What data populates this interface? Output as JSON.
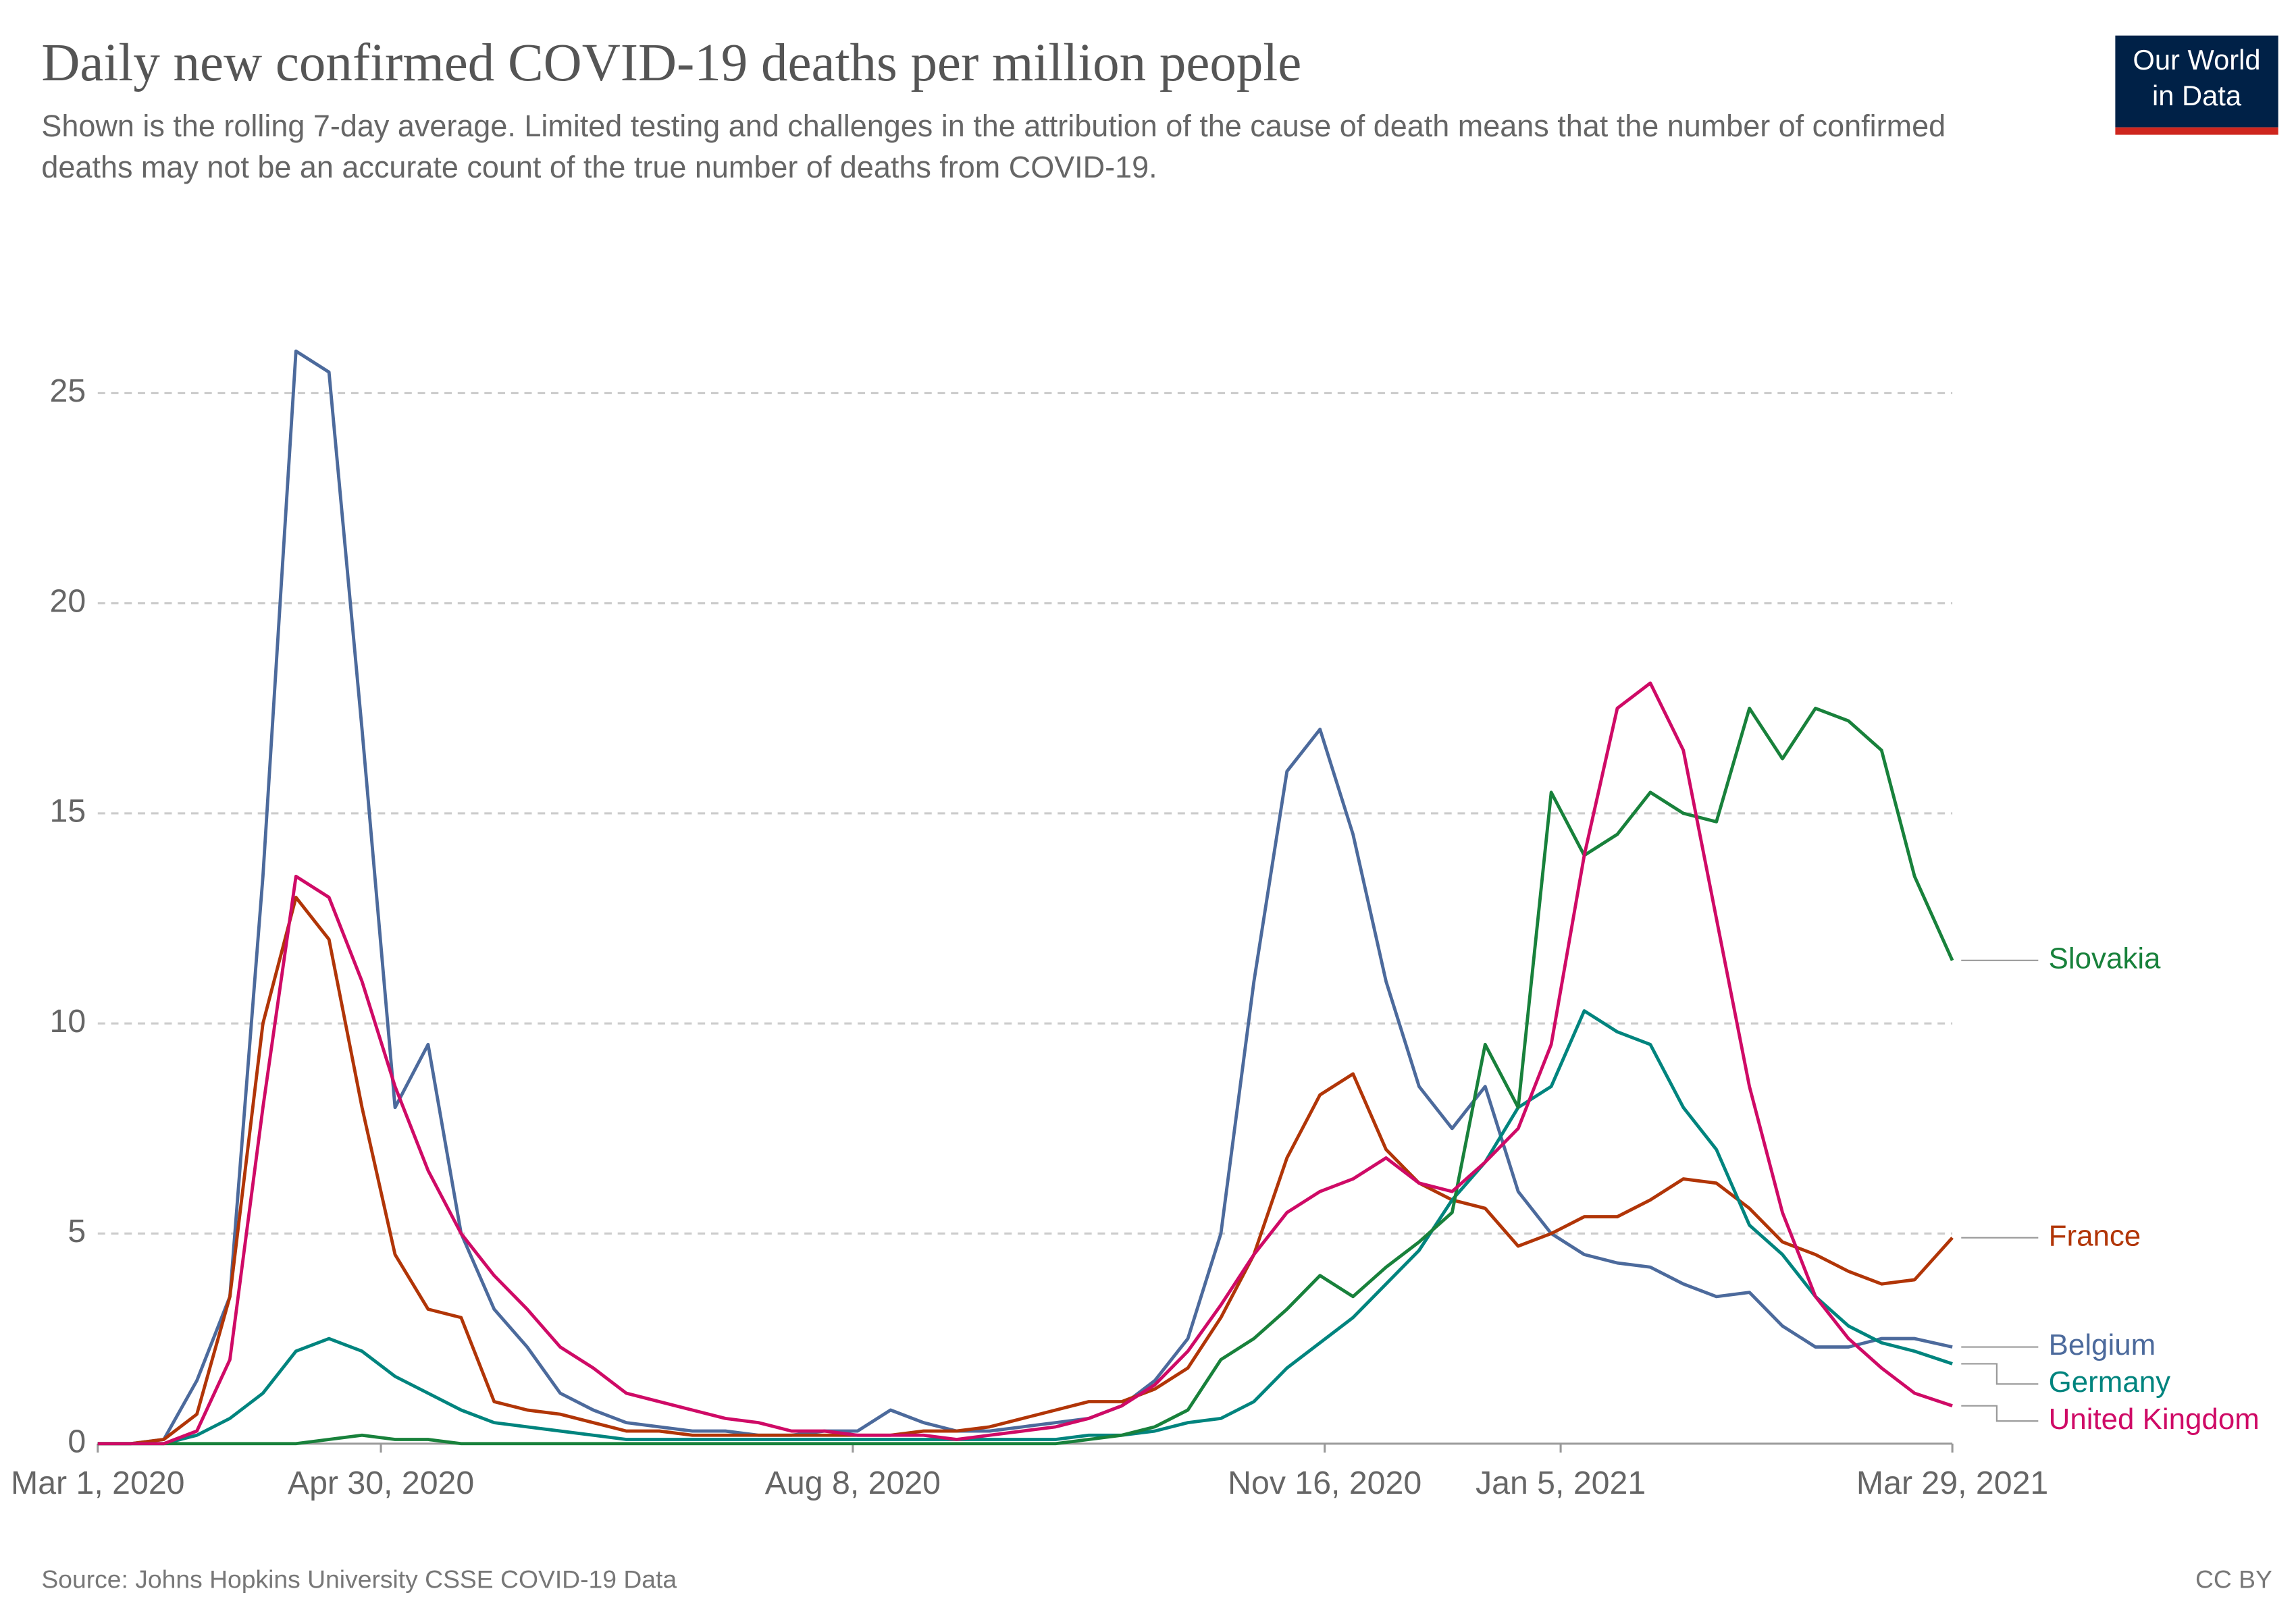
{
  "chart_data": {
    "type": "line",
    "title": "Daily new confirmed COVID-19 deaths per million people",
    "subtitle": "Shown is the rolling 7-day average. Limited testing and challenges in the attribution of the cause of death means that the number of confirmed deaths may not be an accurate count of the true number of deaths from COVID-19.",
    "logo": "Our World in Data",
    "source": "Source: Johns Hopkins University CSSE COVID-19 Data",
    "license": "CC BY",
    "x": [
      "2020-03-01",
      "2020-03-08",
      "2020-03-15",
      "2020-03-22",
      "2020-03-29",
      "2020-04-05",
      "2020-04-12",
      "2020-04-19",
      "2020-04-26",
      "2020-05-03",
      "2020-05-10",
      "2020-05-17",
      "2020-05-24",
      "2020-05-31",
      "2020-06-07",
      "2020-06-14",
      "2020-06-21",
      "2020-06-28",
      "2020-07-05",
      "2020-07-12",
      "2020-07-19",
      "2020-07-26",
      "2020-08-02",
      "2020-08-09",
      "2020-08-16",
      "2020-08-23",
      "2020-08-30",
      "2020-09-06",
      "2020-09-13",
      "2020-09-20",
      "2020-09-27",
      "2020-10-04",
      "2020-10-11",
      "2020-10-18",
      "2020-10-25",
      "2020-11-01",
      "2020-11-08",
      "2020-11-15",
      "2020-11-22",
      "2020-11-29",
      "2020-12-06",
      "2020-12-13",
      "2020-12-20",
      "2020-12-27",
      "2021-01-03",
      "2021-01-10",
      "2021-01-17",
      "2021-01-24",
      "2021-01-31",
      "2021-02-07",
      "2021-02-14",
      "2021-02-21",
      "2021-02-28",
      "2021-03-07",
      "2021-03-14",
      "2021-03-21",
      "2021-03-29"
    ],
    "xlim": [
      "2020-03-01",
      "2021-03-29"
    ],
    "xticks": [
      {
        "value": "2020-03-01",
        "label": "Mar 1, 2020"
      },
      {
        "value": "2020-04-30",
        "label": "Apr 30, 2020"
      },
      {
        "value": "2020-08-08",
        "label": "Aug 8, 2020"
      },
      {
        "value": "2020-11-16",
        "label": "Nov 16, 2020"
      },
      {
        "value": "2021-01-05",
        "label": "Jan 5, 2021"
      },
      {
        "value": "2021-03-29",
        "label": "Mar 29, 2021"
      }
    ],
    "ylim": [
      0,
      29
    ],
    "yticks": [
      0,
      5,
      10,
      15,
      20,
      25
    ],
    "grid": true,
    "series": [
      {
        "name": "Belgium",
        "color": "#4c6a9c",
        "values": [
          0,
          0,
          0.1,
          1.5,
          3.5,
          13.5,
          26,
          25.5,
          17,
          8,
          9.5,
          5,
          3.2,
          2.3,
          1.2,
          0.8,
          0.5,
          0.4,
          0.3,
          0.3,
          0.2,
          0.2,
          0.3,
          0.3,
          0.8,
          0.5,
          0.3,
          0.3,
          0.4,
          0.5,
          0.6,
          0.9,
          1.5,
          2.5,
          5,
          11,
          16,
          17,
          14.5,
          11,
          8.5,
          7.5,
          8.5,
          6,
          5,
          4.5,
          4.3,
          4.2,
          3.8,
          3.5,
          3.6,
          2.8,
          2.3,
          2.3,
          2.5,
          2.5,
          2.3
        ]
      },
      {
        "name": "France",
        "color": "#b13507",
        "values": [
          0,
          0,
          0.1,
          0.7,
          3.5,
          10,
          13,
          12,
          8,
          4.5,
          3.2,
          3,
          1,
          0.8,
          0.7,
          0.5,
          0.3,
          0.3,
          0.2,
          0.2,
          0.2,
          0.2,
          0.2,
          0.2,
          0.2,
          0.3,
          0.3,
          0.4,
          0.6,
          0.8,
          1,
          1,
          1.3,
          1.8,
          3,
          4.5,
          6.8,
          8.3,
          8.8,
          7,
          6.2,
          5.8,
          5.6,
          4.7,
          5,
          5.4,
          5.4,
          5.8,
          6.3,
          6.2,
          5.6,
          4.8,
          4.5,
          4.1,
          3.8,
          3.9,
          4.9
        ]
      },
      {
        "name": "Germany",
        "color": "#00847e",
        "values": [
          0,
          0,
          0,
          0.2,
          0.6,
          1.2,
          2.2,
          2.5,
          2.2,
          1.6,
          1.2,
          0.8,
          0.5,
          0.4,
          0.3,
          0.2,
          0.1,
          0.1,
          0.1,
          0.1,
          0.1,
          0.1,
          0.1,
          0.1,
          0.1,
          0.1,
          0.1,
          0.1,
          0.1,
          0.1,
          0.2,
          0.2,
          0.3,
          0.5,
          0.6,
          1,
          1.8,
          2.4,
          3,
          3.8,
          4.6,
          5.8,
          6.7,
          8,
          8.5,
          10.3,
          9.8,
          9.5,
          8,
          7,
          5.2,
          4.5,
          3.5,
          2.8,
          2.4,
          2.2,
          1.9
        ]
      },
      {
        "name": "Slovakia",
        "color": "#18813b",
        "values": [
          0,
          0,
          0,
          0,
          0,
          0,
          0,
          0.1,
          0.2,
          0.1,
          0.1,
          0,
          0,
          0,
          0,
          0,
          0,
          0,
          0,
          0,
          0,
          0,
          0,
          0,
          0,
          0,
          0,
          0,
          0,
          0,
          0.1,
          0.2,
          0.4,
          0.8,
          2,
          2.5,
          3.2,
          4,
          3.5,
          4.2,
          4.8,
          5.5,
          9.5,
          8,
          15.5,
          14,
          14.5,
          15.5,
          15,
          14.8,
          17.5,
          16.3,
          17.5,
          17.2,
          16.5,
          13.5,
          11.5
        ]
      },
      {
        "name": "United Kingdom",
        "color": "#cf0a66",
        "values": [
          0,
          0,
          0,
          0.3,
          2,
          8,
          13.5,
          13,
          11,
          8.5,
          6.5,
          5,
          4,
          3.2,
          2.3,
          1.8,
          1.2,
          1,
          0.8,
          0.6,
          0.5,
          0.3,
          0.3,
          0.2,
          0.2,
          0.2,
          0.1,
          0.2,
          0.3,
          0.4,
          0.6,
          0.9,
          1.4,
          2.2,
          3.3,
          4.5,
          5.5,
          6,
          6.3,
          6.8,
          6.2,
          6,
          6.7,
          7.5,
          9.5,
          14,
          17.5,
          18.1,
          16.5,
          12.5,
          8.5,
          5.5,
          3.5,
          2.5,
          1.8,
          1.2,
          0.9
        ]
      }
    ]
  }
}
